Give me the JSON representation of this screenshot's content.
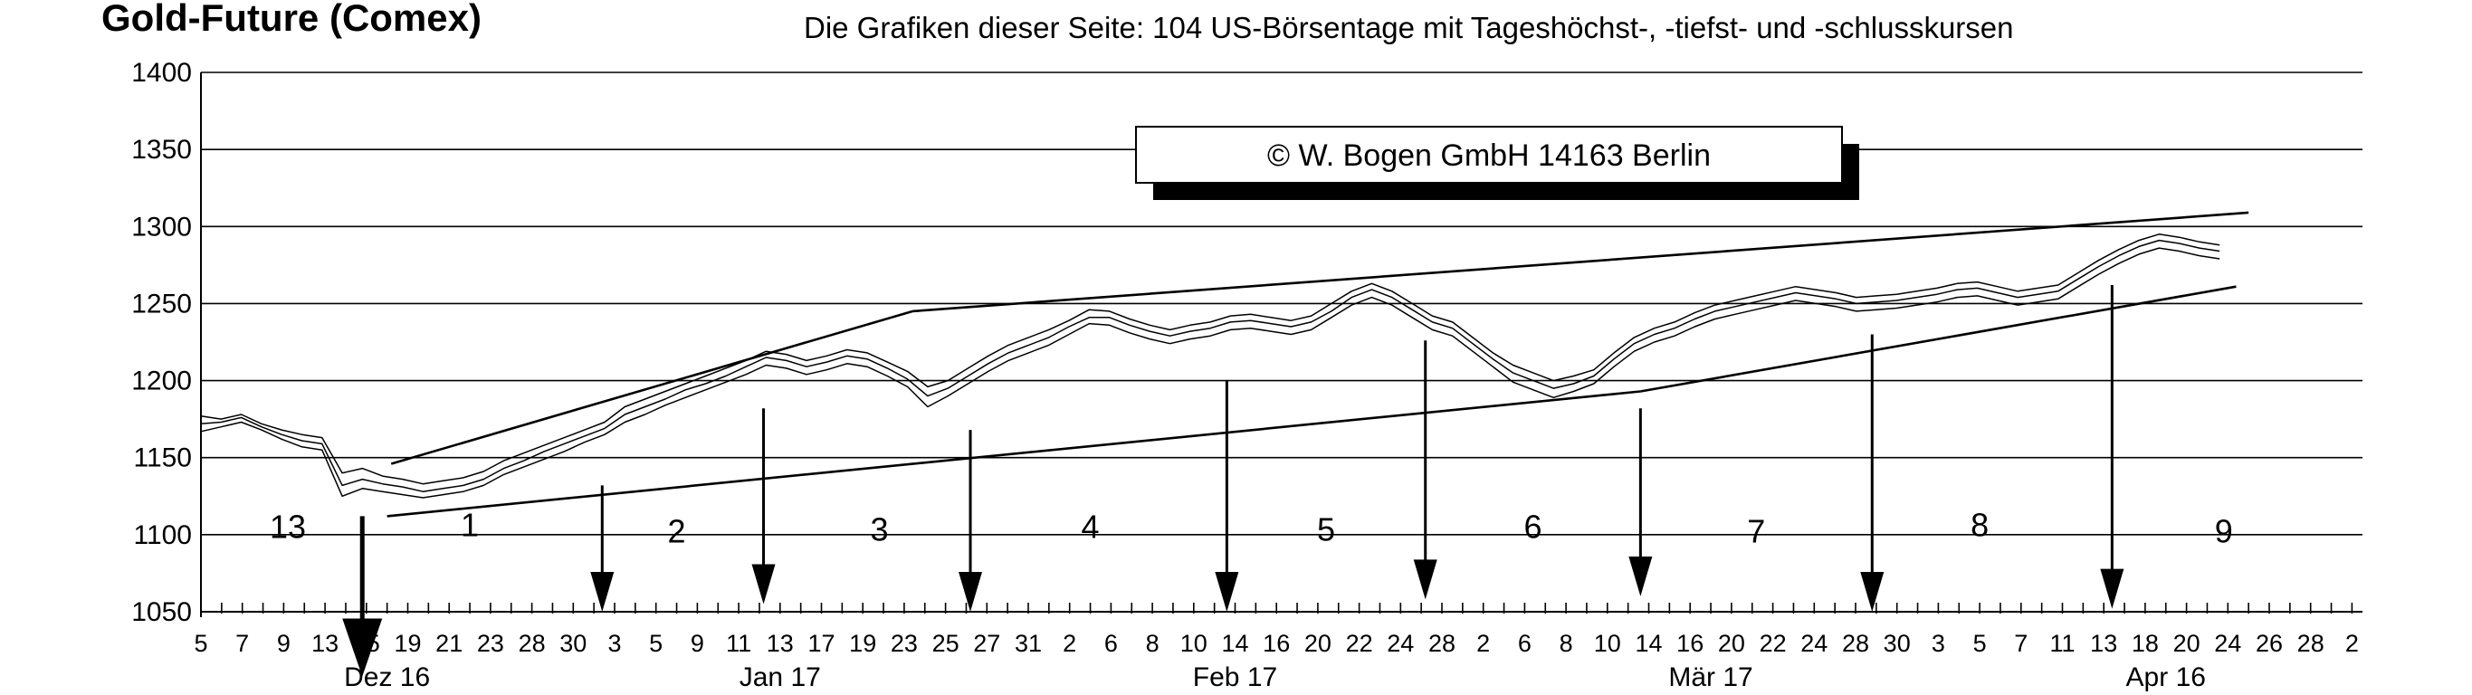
{
  "chart_data": {
    "type": "line",
    "title": "Gold-Future (Comex)",
    "subtitle": "Die Grafiken dieser Seite: 104 US-Börsentage mit Tageshöchst-, -tiefst- und -schlusskursen",
    "copyright": "©  W. Bogen GmbH 14163 Berlin",
    "ylim": [
      1050,
      1400
    ],
    "yticks": [
      1400,
      1350,
      1300,
      1250,
      1200,
      1150,
      1100,
      1050
    ],
    "grid": true,
    "x_labels": [
      "5",
      "7",
      "9",
      "13",
      "15",
      "19",
      "21",
      "23",
      "28",
      "30",
      "3",
      "5",
      "9",
      "11",
      "13",
      "17",
      "19",
      "23",
      "25",
      "27",
      "31",
      "2",
      "6",
      "8",
      "10",
      "14",
      "16",
      "20",
      "22",
      "24",
      "28",
      "2",
      "6",
      "8",
      "10",
      "14",
      "16",
      "20",
      "22",
      "24",
      "28",
      "30",
      "3",
      "5",
      "7",
      "11",
      "13",
      "18",
      "20",
      "24",
      "26",
      "28",
      "2"
    ],
    "month_labels": [
      "Dez 16",
      "Jan 17",
      "Feb 17",
      "Mär 17",
      "Apr 16"
    ],
    "month_positions": [
      4.5,
      14,
      25,
      36.5,
      47.5
    ],
    "cycle_labels": [
      "13",
      "1",
      "2",
      "3",
      "4",
      "5",
      "6",
      "7",
      "8",
      "9"
    ],
    "cycle_positions": [
      [
        2.1,
        1105
      ],
      [
        6.5,
        1106
      ],
      [
        11.5,
        1102
      ],
      [
        16.4,
        1103
      ],
      [
        21.5,
        1105
      ],
      [
        27.2,
        1103
      ],
      [
        32.2,
        1105
      ],
      [
        37.6,
        1102
      ],
      [
        43,
        1106
      ],
      [
        48.9,
        1102
      ]
    ],
    "arrows": [
      {
        "x": 3.9,
        "top": 1112,
        "end": 1008,
        "heavy": true
      },
      {
        "x": 9.7,
        "top": 1132,
        "end": 1050
      },
      {
        "x": 13.6,
        "top": 1182,
        "end": 1055
      },
      {
        "x": 18.6,
        "top": 1168,
        "end": 1050
      },
      {
        "x": 24.8,
        "top": 1200,
        "end": 1050
      },
      {
        "x": 29.6,
        "top": 1226,
        "end": 1058
      },
      {
        "x": 34.8,
        "top": 1182,
        "end": 1060
      },
      {
        "x": 40.4,
        "top": 1230,
        "end": 1050
      },
      {
        "x": 46.2,
        "top": 1262,
        "end": 1052
      }
    ],
    "trendlines": [
      {
        "from": [
          4.6,
          1146
        ],
        "to": [
          17.2,
          1245
        ]
      },
      {
        "from": [
          17.2,
          1245
        ],
        "to": [
          49.5,
          1309
        ]
      },
      {
        "from": [
          4.5,
          1112
        ],
        "to": [
          34.8,
          1193
        ]
      },
      {
        "from": [
          34.8,
          1193
        ],
        "to": [
          49.2,
          1261
        ]
      }
    ],
    "series": [
      {
        "values": [
          1177,
          1175,
          1178,
          1172,
          1168,
          1165,
          1163,
          1140,
          1143,
          1138,
          1136,
          1133,
          1135,
          1137,
          1141,
          1148,
          1153,
          1158,
          1163,
          1168,
          1173,
          1183,
          1188,
          1193,
          1198,
          1203,
          1208,
          1213,
          1219,
          1217,
          1213,
          1216,
          1220,
          1218,
          1212,
          1206,
          1196,
          1200,
          1208,
          1216,
          1223,
          1228,
          1233,
          1239,
          1246,
          1245,
          1240,
          1236,
          1233,
          1236,
          1238,
          1242,
          1243,
          1241,
          1239,
          1242,
          1250,
          1258,
          1263,
          1258,
          1250,
          1242,
          1238,
          1228,
          1218,
          1210,
          1205,
          1200,
          1203,
          1207,
          1218,
          1228,
          1234,
          1238,
          1244,
          1249,
          1252,
          1255,
          1258,
          1261,
          1259,
          1257,
          1254,
          1255,
          1256,
          1258,
          1260,
          1263,
          1264,
          1261,
          1258,
          1260,
          1262,
          1270,
          1278,
          1285,
          1291,
          1295,
          1293,
          1290,
          1288
        ]
      },
      {
        "values": [
          1167,
          1170,
          1173,
          1168,
          1162,
          1157,
          1155,
          1125,
          1130,
          1128,
          1126,
          1124,
          1126,
          1128,
          1132,
          1139,
          1144,
          1149,
          1154,
          1160,
          1165,
          1173,
          1178,
          1184,
          1189,
          1194,
          1199,
          1204,
          1210,
          1208,
          1204,
          1207,
          1211,
          1209,
          1203,
          1196,
          1183,
          1190,
          1198,
          1206,
          1213,
          1218,
          1223,
          1230,
          1237,
          1236,
          1231,
          1227,
          1224,
          1227,
          1229,
          1233,
          1234,
          1232,
          1230,
          1233,
          1241,
          1249,
          1254,
          1249,
          1241,
          1233,
          1229,
          1219,
          1209,
          1199,
          1194,
          1189,
          1193,
          1198,
          1209,
          1219,
          1225,
          1229,
          1235,
          1240,
          1243,
          1246,
          1249,
          1252,
          1250,
          1248,
          1245,
          1246,
          1247,
          1249,
          1251,
          1254,
          1255,
          1252,
          1249,
          1251,
          1253,
          1261,
          1269,
          1276,
          1282,
          1286,
          1284,
          1281,
          1279
        ]
      },
      {
        "values": [
          1172,
          1173,
          1176,
          1170,
          1165,
          1161,
          1159,
          1132,
          1136,
          1133,
          1131,
          1128,
          1130,
          1132,
          1136,
          1143,
          1148,
          1154,
          1159,
          1164,
          1169,
          1178,
          1183,
          1188,
          1194,
          1198,
          1203,
          1209,
          1215,
          1213,
          1209,
          1212,
          1216,
          1214,
          1208,
          1201,
          1190,
          1195,
          1203,
          1211,
          1218,
          1223,
          1228,
          1235,
          1241,
          1241,
          1236,
          1232,
          1229,
          1232,
          1234,
          1238,
          1239,
          1237,
          1235,
          1238,
          1245,
          1254,
          1259,
          1254,
          1246,
          1238,
          1234,
          1224,
          1214,
          1205,
          1200,
          1195,
          1198,
          1203,
          1214,
          1224,
          1230,
          1234,
          1240,
          1245,
          1248,
          1251,
          1254,
          1257,
          1255,
          1253,
          1250,
          1251,
          1252,
          1254,
          1256,
          1259,
          1260,
          1257,
          1254,
          1256,
          1258,
          1266,
          1274,
          1281,
          1287,
          1291,
          1289,
          1286,
          1284
        ]
      }
    ]
  }
}
